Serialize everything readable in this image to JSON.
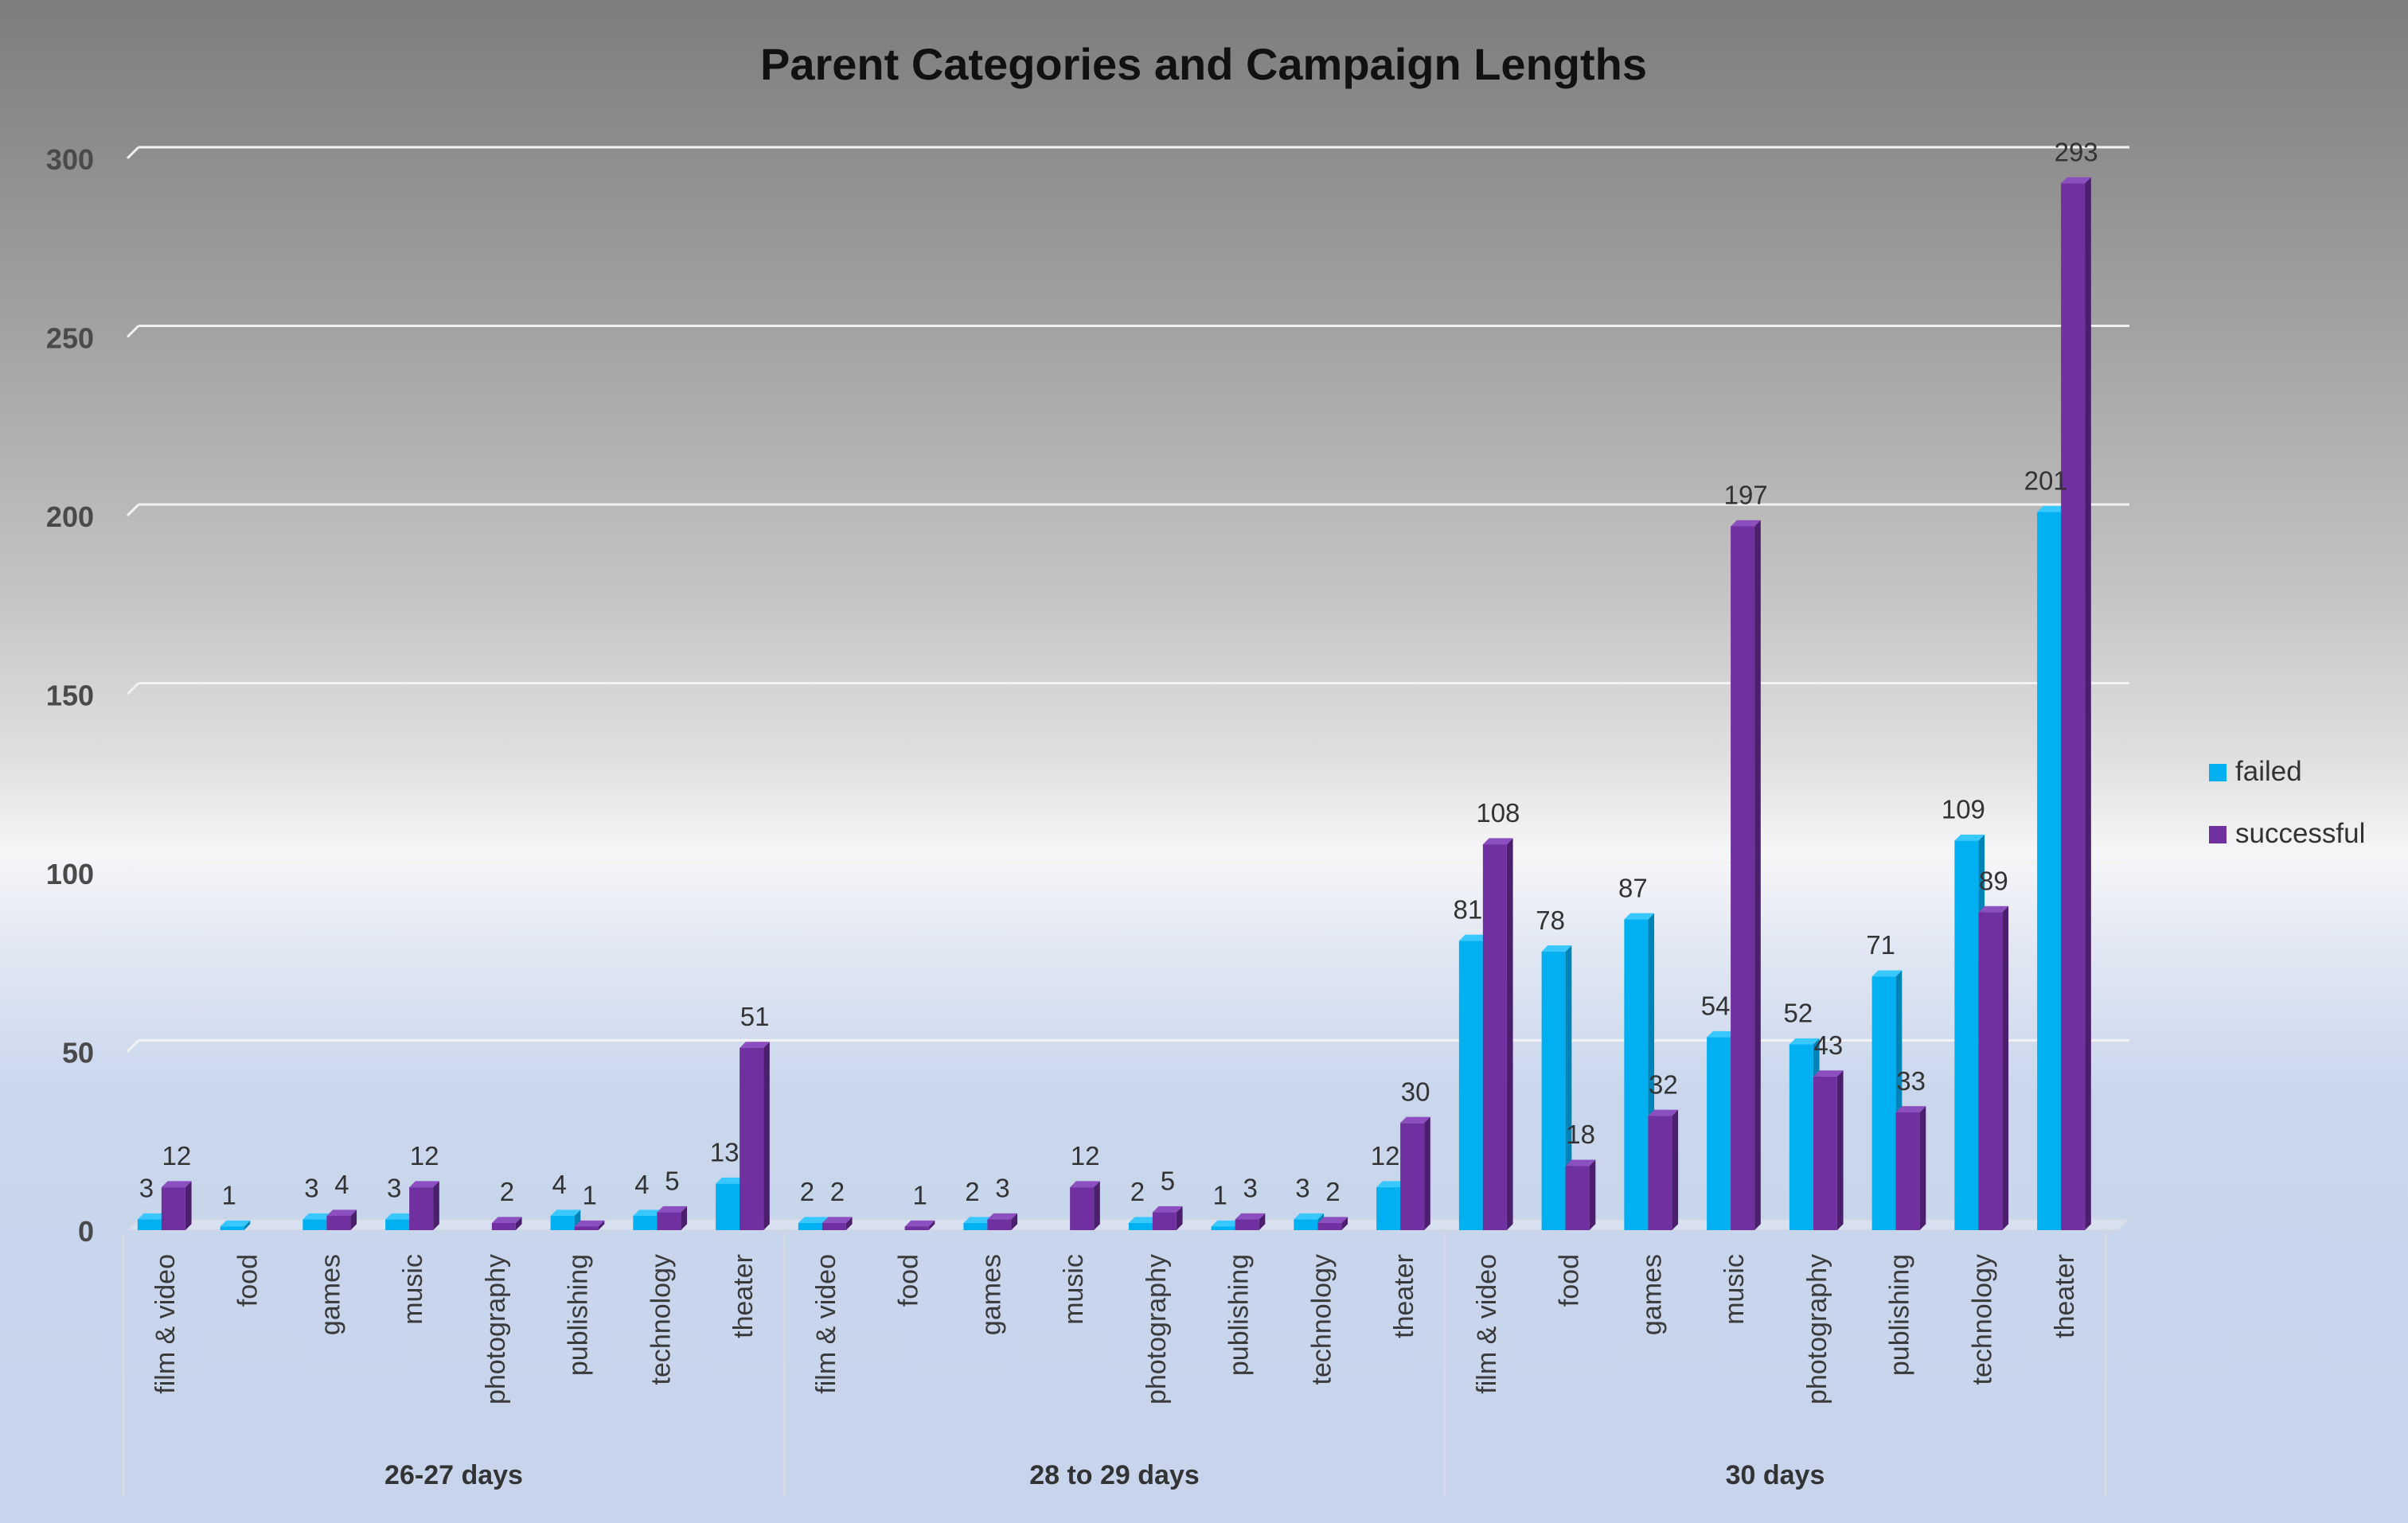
{
  "chart_data": {
    "type": "bar",
    "bar_style": "3d-clustered-column",
    "title": "Parent Categories and Campaign Lengths",
    "xlabel": "",
    "ylabel": "",
    "ylim": [
      0,
      300
    ],
    "yticks": [
      0,
      50,
      100,
      150,
      200,
      250,
      300
    ],
    "grid": true,
    "legend_position": "right",
    "groups": [
      {
        "label": "26-27 days",
        "categories": [
          "film & video",
          "food",
          "games",
          "music",
          "photography",
          "publishing",
          "technology",
          "theater"
        ],
        "failed": [
          3,
          1,
          3,
          3,
          null,
          4,
          4,
          13
        ],
        "successful": [
          12,
          null,
          4,
          12,
          2,
          1,
          5,
          51
        ]
      },
      {
        "label": "28 to 29 days",
        "categories": [
          "film & video",
          "food",
          "games",
          "music",
          "photography",
          "publishing",
          "technology",
          "theater"
        ],
        "failed": [
          2,
          null,
          2,
          null,
          2,
          1,
          3,
          12
        ],
        "successful": [
          2,
          1,
          3,
          12,
          5,
          3,
          2,
          30
        ]
      },
      {
        "label": "30 days",
        "categories": [
          "film & video",
          "food",
          "games",
          "music",
          "photography",
          "publishing",
          "technology",
          "theater"
        ],
        "failed": [
          81,
          78,
          87,
          54,
          52,
          71,
          109,
          201
        ],
        "successful": [
          108,
          18,
          32,
          197,
          43,
          33,
          89,
          293
        ]
      }
    ],
    "series": [
      {
        "name": "failed",
        "color": "#00b0f0",
        "side_color": "#0084b8",
        "top_color": "#39c7ff"
      },
      {
        "name": "successful",
        "color": "#7030a0",
        "side_color": "#4b1f6e",
        "top_color": "#8b4fc0"
      }
    ]
  }
}
